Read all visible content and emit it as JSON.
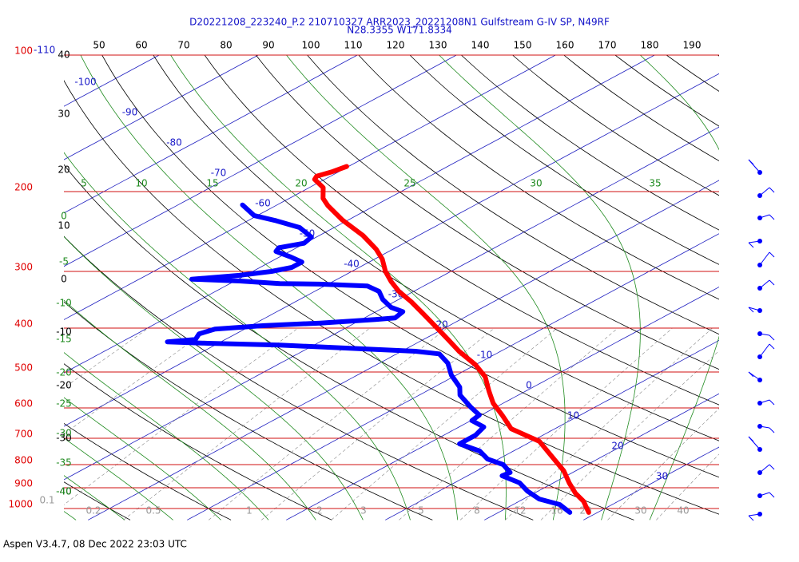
{
  "chart_data": {
    "type": "skewt",
    "title": "D20221208_223240_P.2 210710327 ARR2023_20221208N1 Gulfstream G-IV SP, N49RF",
    "subtitle": "N28.3355 W171.8334",
    "ylim": [
      1000,
      100
    ],
    "log": true,
    "yticks": [
      100,
      200,
      300,
      400,
      500,
      600,
      700,
      800,
      900,
      1000
    ],
    "isotherms": [
      -110,
      -100,
      -90,
      -80,
      -70,
      -60,
      -50,
      -40,
      -30,
      -20,
      -10,
      0,
      10,
      20,
      30
    ],
    "dry_adiabats_top": [
      50,
      60,
      70,
      80,
      90,
      100,
      110,
      120,
      130,
      140,
      150,
      160,
      170,
      180,
      190
    ],
    "dry_adiabats_left": [
      40,
      30,
      20,
      10,
      0,
      -10,
      -20,
      -30,
      -40
    ],
    "moist_adiabats_top": [
      5,
      10,
      15,
      20,
      25,
      30,
      35
    ],
    "moist_adiabats_left": [
      0,
      -5,
      -10,
      -15,
      -20,
      -25,
      -30,
      -35,
      -40
    ],
    "mixing_ratios": [
      0.1,
      0.2,
      0.5,
      1,
      2,
      3,
      5,
      8,
      12,
      16,
      20,
      30,
      40
    ],
    "series": [
      {
        "color": "#ff0000",
        "pressure": [
          176,
          181,
          185,
          188,
          196,
          207,
          215,
          231,
          250,
          268,
          282,
          300,
          316,
          332,
          350,
          371,
          399,
          424,
          450,
          482,
          512,
          551,
          586,
          622,
          667,
          711,
          762,
          826,
          878,
          926,
          964,
          1020
        ],
        "values": [
          -60.2,
          -60.7,
          -61.4,
          -61.0,
          -58.6,
          -56.6,
          -54.7,
          -50.6,
          -45.6,
          -41.7,
          -39.2,
          -36.6,
          -34.1,
          -31.5,
          -28.3,
          -25.0,
          -20.9,
          -17.5,
          -14.2,
          -10.0,
          -6.8,
          -3.7,
          -1.0,
          2.1,
          5.6,
          10.8,
          14.5,
          18.8,
          21.6,
          24.2,
          26.5,
          29.1
        ]
      },
      {
        "color": "#0000ff",
        "pressure": [
          214,
          226,
          232,
          240,
          252,
          260,
          266,
          271,
          279,
          286,
          294,
          300,
          306,
          312,
          315,
          319,
          320,
          323,
          332,
          346,
          360,
          368,
          380,
          383,
          390,
          395,
          402,
          412,
          424,
          429,
          432,
          436,
          445,
          450,
          456,
          478,
          508,
          540,
          562,
          598,
          622,
          640,
          661,
          689,
          720,
          747,
          778,
          800,
          833,
          847,
          878,
          915,
          953,
          980,
          1020
        ],
        "values": [
          -63.5,
          -60.3,
          -57.1,
          -53.5,
          -50.5,
          -50.1,
          -51.8,
          -51.4,
          -48.8,
          -46.8,
          -46.8,
          -48.1,
          -50.6,
          -54.7,
          -49.5,
          -45.0,
          -40.9,
          -35.7,
          -33.5,
          -31.6,
          -29.3,
          -27.3,
          -26.9,
          -28.6,
          -33.5,
          -38.7,
          -43.0,
          -43.7,
          -43.0,
          -45.4,
          -41.1,
          -33.5,
          -23.9,
          -18.6,
          -15.7,
          -13.1,
          -10.5,
          -7.4,
          -5.9,
          -2.5,
          -0.2,
          0.1,
          2.5,
          3.2,
          3.2,
          6.6,
          8.9,
          11.5,
          13.7,
          13.5,
          16.6,
          18.9,
          21.6,
          24.7,
          27.2
        ]
      }
    ]
  },
  "footer": "Aspen V3.4.7, 08 Dec 2022  23:03 UTC"
}
